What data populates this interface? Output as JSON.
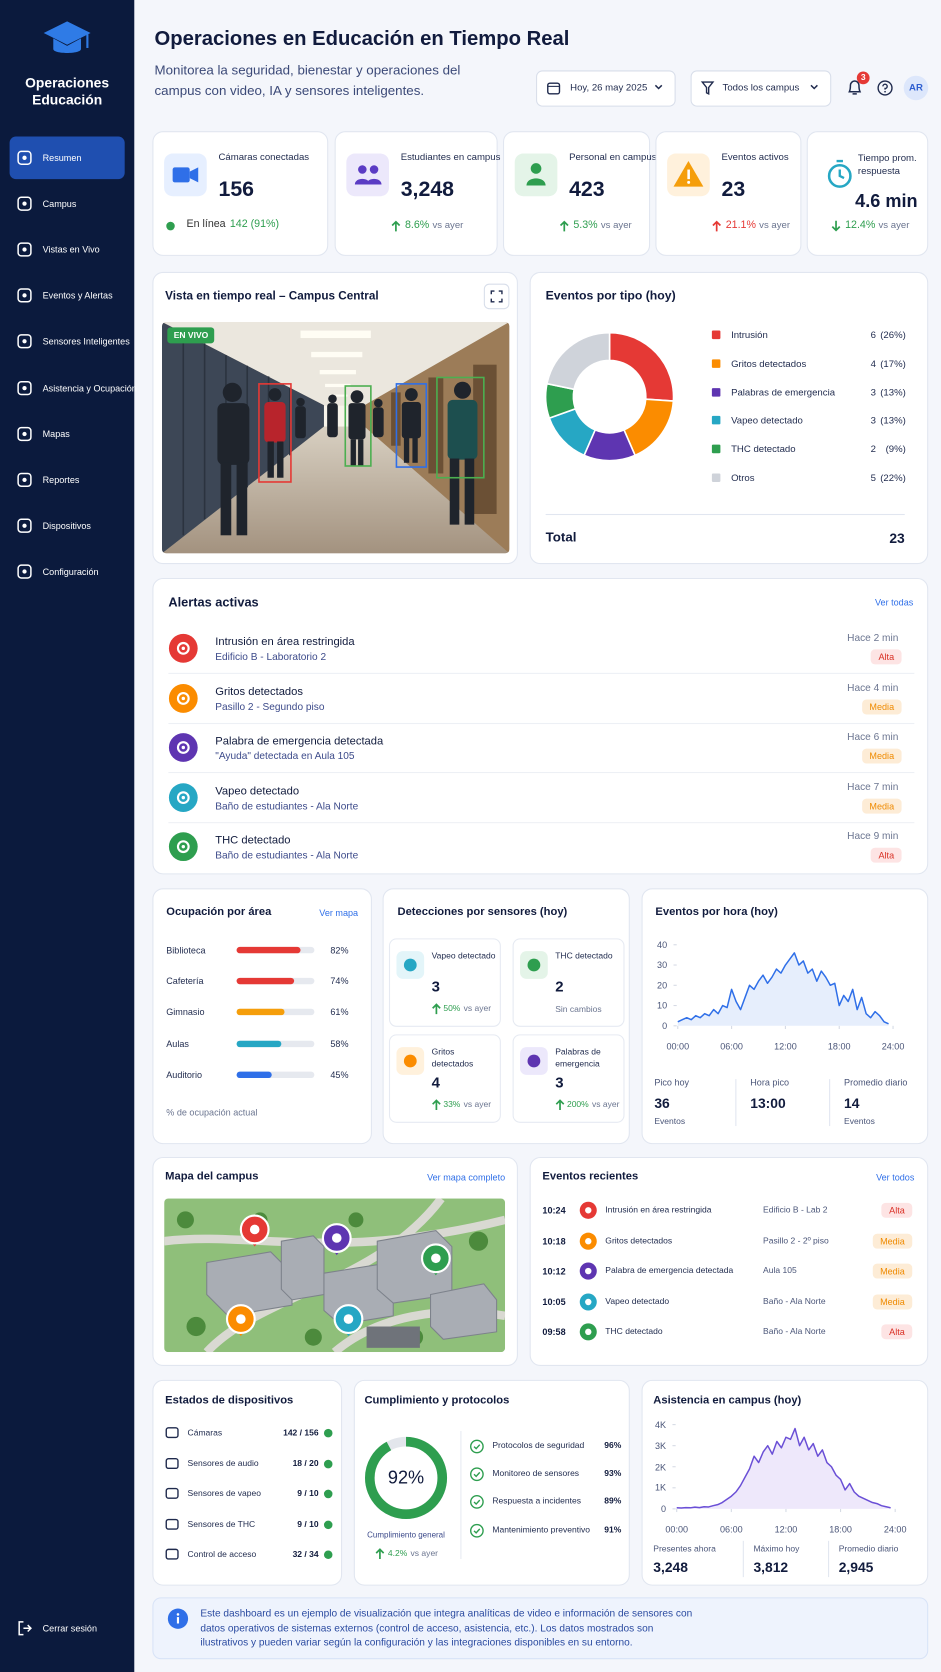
{
  "sidebar": {
    "brand": "Operaciones Educación",
    "nav": [
      "Resumen",
      "Campus",
      "Vistas en Vivo",
      "Eventos y Alertas",
      "Sensores Inteligentes",
      "Asistencia y Ocupación",
      "Mapas",
      "Reportes",
      "Dispositivos",
      "Configuración"
    ],
    "logout": "Cerrar sesión"
  },
  "header": {
    "title": "Operaciones en Educación en Tiempo Real",
    "subtitle": "Monitorea la seguridad, bienestar y operaciones del campus con video, IA y sensores inteligentes.",
    "date": "Hoy, 26 may 2025",
    "campus_filter": "Todos los campus",
    "notifications": 3,
    "avatar": "AR"
  },
  "kpis": [
    {
      "label": "Cámaras conectadas",
      "value": 156,
      "note_prefix": "En línea",
      "note": "142 (91%)",
      "color": "#2f6fe8",
      "bg": "#e6efff"
    },
    {
      "label": "Estudiantes en campus",
      "value": "3,248",
      "change": "8.6%",
      "change_note": "vs ayer",
      "direction": "up",
      "change_color": "#2e9e4f",
      "color": "#5b3cc4",
      "bg": "#ece8fb"
    },
    {
      "label": "Personal en campus",
      "value": 423,
      "change": "5.3%",
      "change_note": "vs ayer",
      "direction": "up",
      "change_color": "#2e9e4f",
      "color": "#2e9e4f",
      "bg": "#e4f4e8"
    },
    {
      "label": "Eventos activos",
      "value": 23,
      "change": "21.1%",
      "change_note": "vs ayer",
      "direction": "up",
      "change_color": "#e53935",
      "color": "#f59e0b",
      "bg": "#fff1dc"
    },
    {
      "label": "Tiempo prom. respuesta",
      "value": "4.6 min",
      "change": "12.4%",
      "change_note": "vs ayer",
      "direction": "down",
      "change_color": "#2e9e4f",
      "color": "#26a7c4",
      "bg": "#ffffff"
    }
  ],
  "live_view": {
    "title": "Vista en tiempo real – Campus Central",
    "badge": "EN VIVO"
  },
  "events_by_type": {
    "type": "pie",
    "title": "Eventos por tipo (hoy)",
    "categories": [
      "Intrusión",
      "Gritos detectados",
      "Palabras de emergencia",
      "Vapeo detectado",
      "THC detectado",
      "Otros"
    ],
    "values": [
      6,
      4,
      3,
      3,
      2,
      5
    ],
    "share_labels": [
      "(26%)",
      "(17%)",
      "(13%)",
      "(13%)",
      "(9%)",
      "(22%)"
    ],
    "colors": [
      "#e53935",
      "#fb8c00",
      "#5e35b1",
      "#26a7c4",
      "#2e9e4f",
      "#cfd3da"
    ],
    "total_label": "Total",
    "total": 23
  },
  "alerts": {
    "title": "Alertas activas",
    "link": "Ver todas",
    "items": [
      {
        "title": "Intrusión en área restringida",
        "location": "Edificio B - Laboratorio 2",
        "time": "Hace 2 min",
        "level": "Alta",
        "icon_color": "#e53935",
        "badge_color": "#d93025",
        "badge_bg": "#fde4e4"
      },
      {
        "title": "Gritos detectados",
        "location": "Pasillo 2 - Segundo piso",
        "time": "Hace 4 min",
        "level": "Media",
        "icon_color": "#fb8c00",
        "badge_color": "#ef8a00",
        "badge_bg": "#fdecd6"
      },
      {
        "title": "Palabra de emergencia detectada",
        "location": "\"Ayuda\" detectada en Aula 105",
        "time": "Hace 6 min",
        "level": "Media",
        "icon_color": "#5e35b1",
        "badge_color": "#ef8a00",
        "badge_bg": "#fdecd6"
      },
      {
        "title": "Vapeo detectado",
        "location": "Baño de estudiantes - Ala Norte",
        "time": "Hace 7 min",
        "level": "Media",
        "icon_color": "#26a7c4",
        "badge_color": "#ef8a00",
        "badge_bg": "#fdecd6"
      },
      {
        "title": "THC detectado",
        "location": "Baño de estudiantes - Ala Norte",
        "time": "Hace 9 min",
        "level": "Alta",
        "icon_color": "#2e9e4f",
        "badge_color": "#d93025",
        "badge_bg": "#fde4e4"
      }
    ]
  },
  "occupancy": {
    "type": "bar",
    "title": "Ocupación por área",
    "link": "Ver mapa",
    "categories": [
      "Biblioteca",
      "Cafetería",
      "Gimnasio",
      "Aulas",
      "Auditorio"
    ],
    "values": [
      82,
      74,
      61,
      58,
      45
    ],
    "value_labels": [
      "82%",
      "74%",
      "61%",
      "58%",
      "45%"
    ],
    "colors": [
      "#e53935",
      "#e53935",
      "#f59e0b",
      "#26a7c4",
      "#2f6fe8"
    ],
    "xlim": [
      0,
      100
    ],
    "footnote": "% de ocupación actual"
  },
  "sensors": {
    "title": "Detecciones por sensores (hoy)",
    "items": [
      {
        "label": "Vapeo detectado",
        "value": 3,
        "change": "50%",
        "note": "vs ayer",
        "color": "#26a7c4",
        "bg": "#e3f5f9"
      },
      {
        "label": "THC detectado",
        "value": 2,
        "note": "Sin cambios",
        "color": "#2e9e4f",
        "bg": "#e4f4e8"
      },
      {
        "label": "Gritos detectados",
        "value": 4,
        "change": "33%",
        "note": "vs ayer",
        "color": "#fb8c00",
        "bg": "#fff1dc"
      },
      {
        "label": "Palabras de emergencia",
        "value": 3,
        "change": "200%",
        "note": "vs ayer",
        "color": "#5e35b1",
        "bg": "#ece8fb"
      }
    ]
  },
  "events_by_hour": {
    "type": "area",
    "title": "Eventos por hora (hoy)",
    "x": [
      0,
      0.5,
      1,
      1.5,
      2,
      2.5,
      3,
      3.5,
      4,
      4.5,
      5,
      5.5,
      6,
      6.5,
      7,
      7.5,
      8,
      8.5,
      9,
      9.5,
      10,
      10.5,
      11,
      11.5,
      12,
      12.5,
      13,
      13.5,
      14,
      14.5,
      15,
      15.5,
      16,
      16.5,
      17,
      17.5,
      18,
      18.5,
      19,
      19.5,
      20,
      20.5,
      21,
      21.5,
      22,
      22.5,
      23,
      23.5
    ],
    "values": [
      2,
      3,
      4,
      3,
      5,
      4,
      6,
      5,
      8,
      6,
      10,
      9,
      18,
      12,
      8,
      14,
      20,
      18,
      22,
      25,
      21,
      24,
      28,
      26,
      30,
      33,
      36,
      30,
      32,
      26,
      28,
      22,
      27,
      24,
      20,
      21,
      10,
      15,
      12,
      18,
      8,
      14,
      6,
      4,
      7,
      5,
      2,
      1
    ],
    "color": "#2f6fe8",
    "xlim": [
      0,
      24
    ],
    "ylim": [
      0,
      40
    ],
    "xticks": [
      {
        "value": 0,
        "label": "00:00"
      },
      {
        "value": 6,
        "label": "06:00"
      },
      {
        "value": 12,
        "label": "12:00"
      },
      {
        "value": 18,
        "label": "18:00"
      },
      {
        "value": 24,
        "label": "24:00"
      }
    ],
    "yticks": [
      0,
      10,
      20,
      30,
      40
    ],
    "stats": [
      {
        "label": "Pico hoy",
        "value": 36,
        "unit": "Eventos"
      },
      {
        "label": "Hora pico",
        "value": "13:00"
      },
      {
        "label": "Promedio diario",
        "value": 14,
        "unit": "Eventos"
      }
    ]
  },
  "campus_map": {
    "title": "Mapa del campus",
    "link": "Ver mapa completo"
  },
  "recent_events": {
    "title": "Eventos recientes",
    "link": "Ver todos",
    "items": [
      {
        "time": "10:24",
        "title": "Intrusión en área restringida",
        "location": "Edificio B - Lab 2",
        "level": "Alta",
        "icon_color": "#e53935",
        "badge_color": "#d93025",
        "badge_bg": "#fde4e4"
      },
      {
        "time": "10:18",
        "title": "Gritos detectados",
        "location": "Pasillo 2 - 2º piso",
        "level": "Media",
        "icon_color": "#fb8c00",
        "badge_color": "#ef8a00",
        "badge_bg": "#fdecd6"
      },
      {
        "time": "10:12",
        "title": "Palabra de emergencia detectada",
        "location": "Aula 105",
        "level": "Media",
        "icon_color": "#5e35b1",
        "badge_color": "#ef8a00",
        "badge_bg": "#fdecd6"
      },
      {
        "time": "10:05",
        "title": "Vapeo detectado",
        "location": "Baño - Ala Norte",
        "level": "Media",
        "icon_color": "#26a7c4",
        "badge_color": "#ef8a00",
        "badge_bg": "#fdecd6"
      },
      {
        "time": "09:58",
        "title": "THC detectado",
        "location": "Baño - Ala Norte",
        "level": "Alta",
        "icon_color": "#2e9e4f",
        "badge_color": "#d93025",
        "badge_bg": "#fde4e4"
      }
    ]
  },
  "devices": {
    "title": "Estados de dispositivos",
    "items": [
      {
        "label": "Cámaras",
        "value": "142 / 156"
      },
      {
        "label": "Sensores de audio",
        "value": "18 / 20"
      },
      {
        "label": "Sensores de vapeo",
        "value": "9 / 10"
      },
      {
        "label": "Sensores de THC",
        "value": "9 / 10"
      },
      {
        "label": "Control de acceso",
        "value": "32 / 34"
      }
    ]
  },
  "compliance": {
    "title": "Cumplimiento y protocolos",
    "gauge": {
      "value": 92,
      "label": "92%",
      "lim": [
        0,
        100
      ],
      "color": "#2e9e4f"
    },
    "caption": "Cumplimiento general",
    "change": "4.2%",
    "change_note": "vs ayer",
    "items": [
      {
        "label": "Protocolos de seguridad",
        "value": "96%"
      },
      {
        "label": "Monitoreo de sensores",
        "value": "93%"
      },
      {
        "label": "Respuesta a incidentes",
        "value": "89%"
      },
      {
        "label": "Mantenimiento preventivo",
        "value": "91%"
      }
    ]
  },
  "attendance": {
    "type": "area",
    "title": "Asistencia en campus (hoy)",
    "x": [
      0,
      0.5,
      1,
      1.5,
      2,
      2.5,
      3,
      3.5,
      4,
      4.5,
      5,
      5.5,
      6,
      6.5,
      7,
      7.5,
      8,
      8.5,
      9,
      9.5,
      10,
      10.5,
      11,
      11.5,
      12,
      12.5,
      13,
      13.5,
      14,
      14.5,
      15,
      15.5,
      16,
      16.5,
      17,
      17.5,
      18,
      18.5,
      19,
      19.5,
      20,
      20.5,
      21,
      21.5,
      22,
      22.5,
      23,
      23.5
    ],
    "values": [
      50,
      40,
      60,
      50,
      80,
      60,
      100,
      90,
      150,
      200,
      300,
      450,
      600,
      800,
      1100,
      1500,
      1900,
      2500,
      2200,
      2700,
      3000,
      2600,
      3200,
      2900,
      3400,
      3300,
      3812,
      3000,
      3400,
      2800,
      3100,
      2500,
      2800,
      2200,
      2000,
      1600,
      1400,
      900,
      1200,
      800,
      600,
      500,
      400,
      300,
      250,
      150,
      100,
      50
    ],
    "color": "#6a4fd6",
    "xlim": [
      0,
      24
    ],
    "ylim": [
      0,
      4000
    ],
    "xticks": [
      {
        "value": 0,
        "label": "00:00"
      },
      {
        "value": 6,
        "label": "06:00"
      },
      {
        "value": 12,
        "label": "12:00"
      },
      {
        "value": 18,
        "label": "18:00"
      },
      {
        "value": 24,
        "label": "24:00"
      }
    ],
    "yticks": [
      0,
      {
        "value": 1000,
        "label": "1K"
      },
      {
        "value": 2000,
        "label": "2K"
      },
      {
        "value": 3000,
        "label": "3K"
      },
      {
        "value": 4000,
        "label": "4K"
      }
    ],
    "stats": [
      {
        "label": "Presentes ahora",
        "value": "3,248"
      },
      {
        "label": "Máximo hoy",
        "value": "3,812"
      },
      {
        "label": "Promedio diario",
        "value": "2,945"
      }
    ]
  },
  "footer_note": "Este dashboard es un ejemplo de visualización que integra analíticas de video e información de sensores con datos operativos de sistemas externos (control de acceso, asistencia, etc.). Los datos mostrados son ilustrativos y pueden variar según la configuración y las integraciones disponibles en su entorno."
}
